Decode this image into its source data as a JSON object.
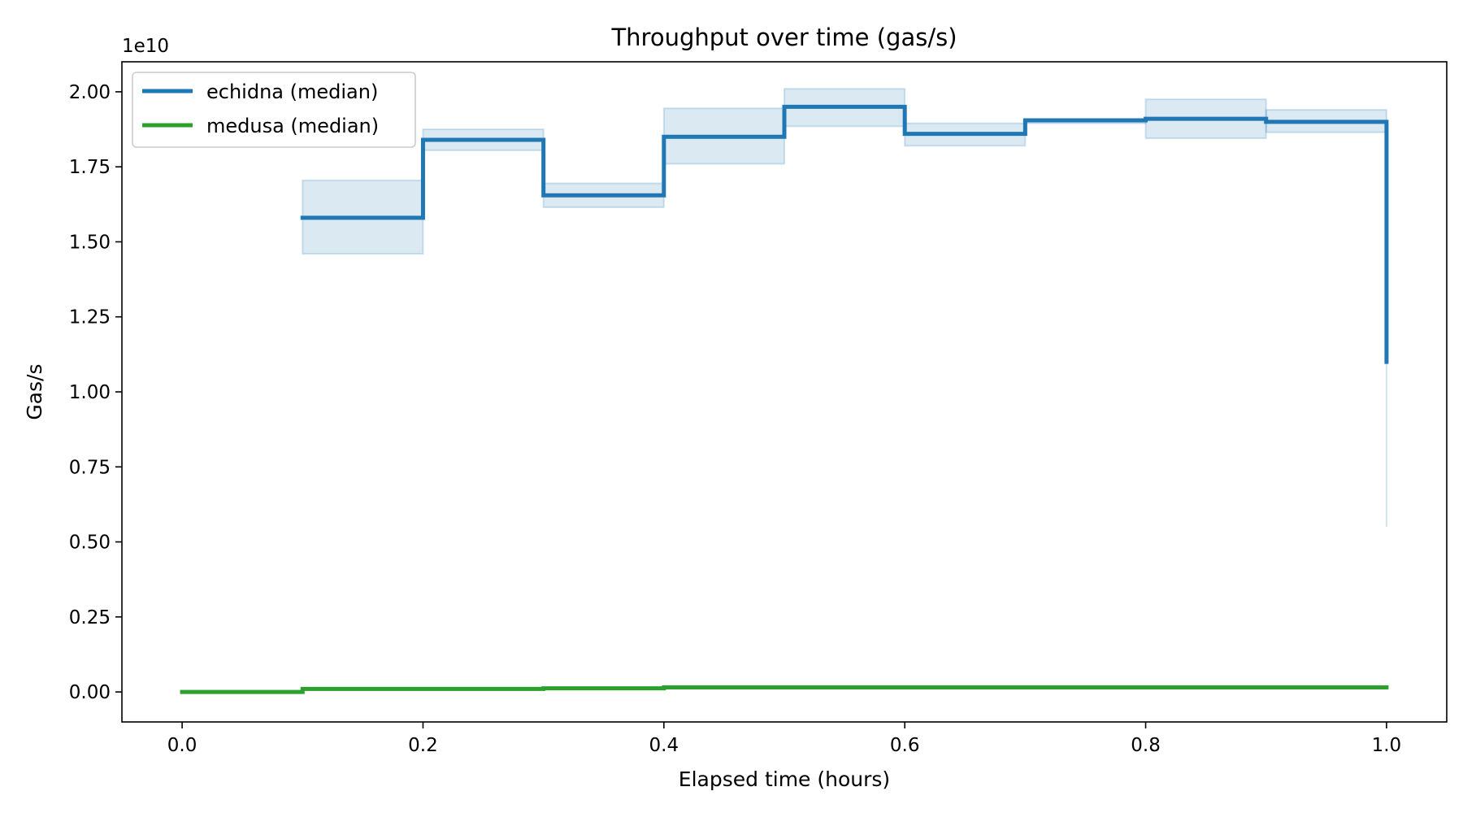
{
  "chart_data": {
    "type": "line",
    "step": "post",
    "title": "Throughput over time (gas/s)",
    "xlabel": "Elapsed time (hours)",
    "ylabel": "Gas/s",
    "y_offset_text": "1e10",
    "xlim": [
      -0.05,
      1.05
    ],
    "ylim": [
      -1000000000.0,
      21000000000.0
    ],
    "x_ticks": [
      0.0,
      0.2,
      0.4,
      0.6,
      0.8,
      1.0
    ],
    "x_tick_labels": [
      "0.0",
      "0.2",
      "0.4",
      "0.6",
      "0.8",
      "1.0"
    ],
    "y_ticks": [
      0,
      2500000000.0,
      5000000000.0,
      7500000000.0,
      10000000000.0,
      12500000000.0,
      15000000000.0,
      17500000000.0,
      20000000000.0
    ],
    "y_tick_labels": [
      "0.00",
      "0.25",
      "0.50",
      "0.75",
      "1.00",
      "1.25",
      "1.50",
      "1.75",
      "2.00"
    ],
    "grid": false,
    "legend_position": "top-left",
    "series": [
      {
        "name": "echidna (median)",
        "color": "#1f77b4",
        "band_color": "#1f77b4",
        "x": [
          0.1,
          0.2,
          0.3,
          0.4,
          0.5,
          0.6,
          0.7,
          0.8,
          0.9,
          1.0
        ],
        "y": [
          15800000000.0,
          18400000000.0,
          16550000000.0,
          18500000000.0,
          19500000000.0,
          18600000000.0,
          19050000000.0,
          19100000000.0,
          19000000000.0,
          11000000000.0
        ],
        "band_low": [
          14600000000.0,
          18050000000.0,
          16150000000.0,
          17600000000.0,
          18850000000.0,
          18200000000.0,
          18950000000.0,
          18450000000.0,
          18650000000.0,
          5500000000.0
        ],
        "band_high": [
          17050000000.0,
          18750000000.0,
          16950000000.0,
          19450000000.0,
          20100000000.0,
          18950000000.0,
          19050000000.0,
          19750000000.0,
          19400000000.0,
          11000000000.0
        ]
      },
      {
        "name": "medusa (median)",
        "color": "#2ca02c",
        "x": [
          0.0,
          0.1,
          0.3,
          0.4,
          1.0
        ],
        "y": [
          0.0,
          100000000.0,
          120000000.0,
          150000000.0,
          150000000.0
        ]
      }
    ]
  }
}
